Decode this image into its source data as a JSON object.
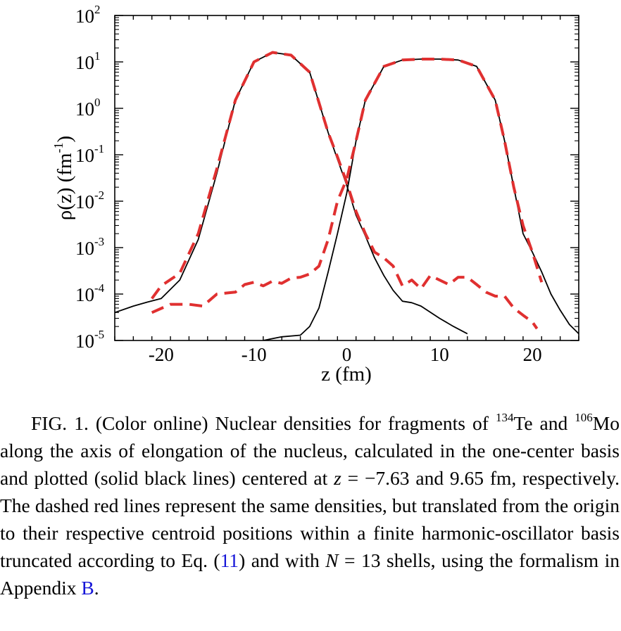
{
  "figure": {
    "chart_data": {
      "type": "line",
      "xlabel": "z (fm)",
      "ylabel": "ρ(z) (fm",
      "ylabel_exp": "-1",
      "ylabel_close": ")",
      "xlim": [
        -25,
        25
      ],
      "ylim": [
        1e-05,
        100
      ],
      "yscale": "log",
      "x_ticks": [
        -20,
        -10,
        0,
        10,
        20
      ],
      "x_tick_labels": [
        "-20",
        "-10",
        "0",
        "10",
        "20"
      ],
      "y_ticks": [
        {
          "value": 100,
          "base": "10",
          "exp": "2"
        },
        {
          "value": 10,
          "base": "10",
          "exp": "1"
        },
        {
          "value": 1,
          "base": "10",
          "exp": "0"
        },
        {
          "value": 0.1,
          "base": "10",
          "exp": "-1"
        },
        {
          "value": 0.01,
          "base": "10",
          "exp": "-2"
        },
        {
          "value": 0.001,
          "base": "10",
          "exp": "-3"
        },
        {
          "value": 0.0001,
          "base": "10",
          "exp": "-4"
        },
        {
          "value": 1e-05,
          "base": "10",
          "exp": "-5"
        }
      ],
      "grid": false,
      "series": [
        {
          "style": "solid",
          "color": "#000000",
          "x": [
            -25,
            -23,
            -21.5,
            -20,
            -18,
            -16,
            -14,
            -12,
            -10,
            -8,
            -6,
            -4,
            -2,
            -1,
            0,
            1,
            2,
            3,
            4,
            5,
            6,
            7,
            8,
            10,
            11.5,
            13
          ],
          "y": [
            4e-05,
            5.5e-05,
            6.7e-05,
            8e-05,
            0.0002,
            0.0015,
            0.04,
            1.5,
            10,
            16,
            14,
            6,
            0.3,
            0.08,
            0.022,
            0.005,
            0.0018,
            0.0006,
            0.00025,
            0.00012,
            7e-05,
            6.5e-05,
            5.5e-05,
            3e-05,
            2e-05,
            1.4e-05
          ]
        },
        {
          "style": "dashed",
          "color": "#e03030",
          "x": [
            -21,
            -20,
            -18,
            -16,
            -14,
            -12,
            -10,
            -8,
            -6,
            -4,
            -2,
            -1,
            0,
            1,
            2,
            3,
            4,
            5,
            6,
            7,
            8,
            9,
            10,
            11,
            12,
            13,
            14,
            15,
            16,
            17,
            18,
            19,
            20,
            20.5
          ],
          "y": [
            8e-05,
            0.00015,
            0.00028,
            0.002,
            0.05,
            1.5,
            10,
            16,
            14,
            6,
            0.3,
            0.09,
            0.025,
            0.006,
            0.002,
            0.0008,
            0.0006,
            0.0004,
            0.00015,
            0.0002,
            0.00013,
            0.00025,
            0.0002,
            0.00016,
            0.00023,
            0.00023,
            0.00016,
            0.00011,
            9e-05,
            9e-05,
            5e-05,
            3.5e-05,
            2.5e-05,
            1.8e-05
          ]
        },
        {
          "style": "solid",
          "color": "#000000",
          "x": [
            -9,
            -7,
            -5,
            -4,
            -3,
            -2,
            -1,
            0,
            1,
            2,
            4,
            6,
            8,
            10,
            12,
            14,
            16,
            17,
            18,
            19,
            20,
            21,
            22,
            23,
            24,
            25
          ],
          "y": [
            1e-05,
            1.2e-05,
            1.3e-05,
            2e-05,
            5e-05,
            0.0003,
            0.002,
            0.015,
            0.2,
            1.5,
            8,
            11,
            11.5,
            11.5,
            11,
            8,
            1.5,
            0.2,
            0.02,
            0.002,
            0.0008,
            0.0003,
            0.0001,
            4.5e-05,
            2.2e-05,
            1.4e-05
          ]
        },
        {
          "style": "dashed",
          "color": "#e03030",
          "x": [
            -21,
            -19,
            -17,
            -15.5,
            -14,
            -12,
            -11,
            -10,
            -9,
            -8,
            -7,
            -6,
            -5,
            -4,
            -3,
            -2,
            -1,
            0,
            1,
            2,
            4,
            6,
            8,
            10,
            12,
            14,
            16,
            17,
            18,
            19,
            20,
            21
          ],
          "y": [
            4e-05,
            6e-05,
            6e-05,
            5.5e-05,
            0.0001,
            0.00011,
            0.00016,
            0.00018,
            0.00015,
            0.00019,
            0.00017,
            0.00022,
            0.00023,
            0.00027,
            0.0004,
            0.0015,
            0.01,
            0.03,
            0.2,
            1.5,
            8,
            11,
            11.5,
            11.5,
            11,
            8,
            1.5,
            0.2,
            0.02,
            0.003,
            0.0008,
            0.00018
          ]
        }
      ]
    }
  },
  "caption": {
    "fig_label": "FIG. 1.",
    "t1": " (Color online) Nuclear densities for fragments of ",
    "iso1_mass": "134",
    "iso1_el": "Te",
    "t2": " and ",
    "iso2_mass": "106",
    "iso2_el": "Mo",
    "t3": " along the axis of elongation of the nucleus, calculated in the one-center basis and plotted (solid black lines) centered at ",
    "z_sym": "z",
    "t4": " = −7.63 and 9.65 fm, respectively. The dashed red lines represent the same densities, but translated from the origin to their respective centroid positions within a finite harmonic-oscillator basis truncated according to Eq. (",
    "eq_ref": "11",
    "t5": ") and with ",
    "n_sym": "N",
    "t6": " = 13 shells, using the formalism in Appendix ",
    "app_ref": "B",
    "t7": "."
  }
}
